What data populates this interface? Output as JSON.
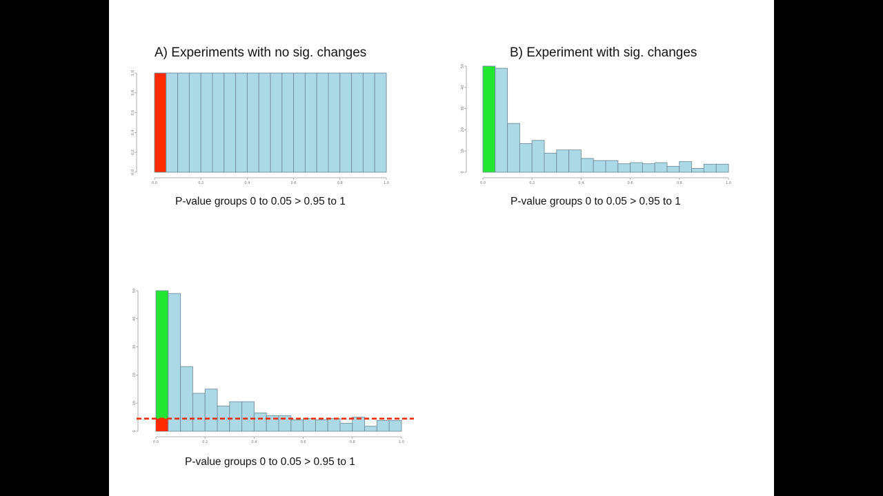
{
  "colors": {
    "bar": "#add8e6",
    "bar_stroke": "#6f8f9c",
    "significant_red": "#ff2a00",
    "significant_green": "#22e632",
    "threshold_line": "#ff2a00",
    "axis": "#999999"
  },
  "chart_data": [
    {
      "id": "A",
      "type": "bar",
      "title": "A) Experiments with no sig. changes",
      "caption": "P-value groups 0 to 0.05 > 0.95 to 1",
      "x": [
        0.025,
        0.075,
        0.125,
        0.175,
        0.225,
        0.275,
        0.325,
        0.375,
        0.425,
        0.475,
        0.525,
        0.575,
        0.625,
        0.675,
        0.725,
        0.775,
        0.825,
        0.875,
        0.925,
        0.975
      ],
      "values": [
        1,
        1,
        1,
        1,
        1,
        1,
        1,
        1,
        1,
        1,
        1,
        1,
        1,
        1,
        1,
        1,
        1,
        1,
        1,
        1
      ],
      "bin_width": 0.05,
      "highlight_first_bin": "red",
      "xlim": [
        0,
        1
      ],
      "ylim": [
        0,
        1
      ],
      "xticks": [
        "0.0",
        "0.2",
        "0.4",
        "0.6",
        "0.8",
        "1.0"
      ],
      "yticks": [
        "0.0",
        "0.2",
        "0.4",
        "0.6",
        "0.8",
        "1.0"
      ],
      "xlabel": "",
      "ylabel": "",
      "grid": false
    },
    {
      "id": "B",
      "type": "bar",
      "title": "B) Experiment with sig. changes",
      "caption": "P-value groups 0 to 0.05 > 0.95 to 1",
      "x": [
        0.025,
        0.075,
        0.125,
        0.175,
        0.225,
        0.275,
        0.325,
        0.375,
        0.425,
        0.475,
        0.525,
        0.575,
        0.625,
        0.675,
        0.725,
        0.775,
        0.825,
        0.875,
        0.925,
        0.975
      ],
      "values": [
        50,
        49,
        23,
        13.5,
        15,
        9,
        10.5,
        10.5,
        6.5,
        5.5,
        5.5,
        4,
        4.5,
        4,
        4.5,
        2.8,
        5,
        1.8,
        3.8,
        3.8
      ],
      "bin_width": 0.05,
      "highlight_first_bin": "green",
      "xlim": [
        0,
        1
      ],
      "ylim": [
        0,
        50
      ],
      "xticks": [
        "0.0",
        "0.2",
        "0.4",
        "0.6",
        "0.8",
        "1.0"
      ],
      "yticks": [
        "0",
        "10",
        "20",
        "30",
        "40",
        "50"
      ],
      "xlabel": "",
      "ylabel": "",
      "grid": false
    },
    {
      "id": "C",
      "type": "bar",
      "title": "",
      "caption": "P-value groups 0 to 0.05 > 0.95 to 1",
      "x": [
        0.025,
        0.075,
        0.125,
        0.175,
        0.225,
        0.275,
        0.325,
        0.375,
        0.425,
        0.475,
        0.525,
        0.575,
        0.625,
        0.675,
        0.725,
        0.775,
        0.825,
        0.875,
        0.925,
        0.975
      ],
      "values": [
        50,
        49,
        23,
        13.5,
        15,
        9,
        10.5,
        10.5,
        6.5,
        5.5,
        5.5,
        4,
        4.5,
        4,
        4.5,
        2.8,
        5,
        1.8,
        3.8,
        3.8
      ],
      "bin_width": 0.05,
      "highlight_first_bin": "green-over-red",
      "first_bin_red_portion": 4.5,
      "threshold": 4.5,
      "xlim": [
        0,
        1
      ],
      "ylim": [
        0,
        50
      ],
      "xticks": [
        "0.0",
        "0.2",
        "0.4",
        "0.6",
        "0.8",
        "1.0"
      ],
      "yticks": [
        "0",
        "10",
        "20",
        "30",
        "40",
        "50"
      ],
      "xlabel": "",
      "ylabel": "",
      "grid": false
    }
  ]
}
